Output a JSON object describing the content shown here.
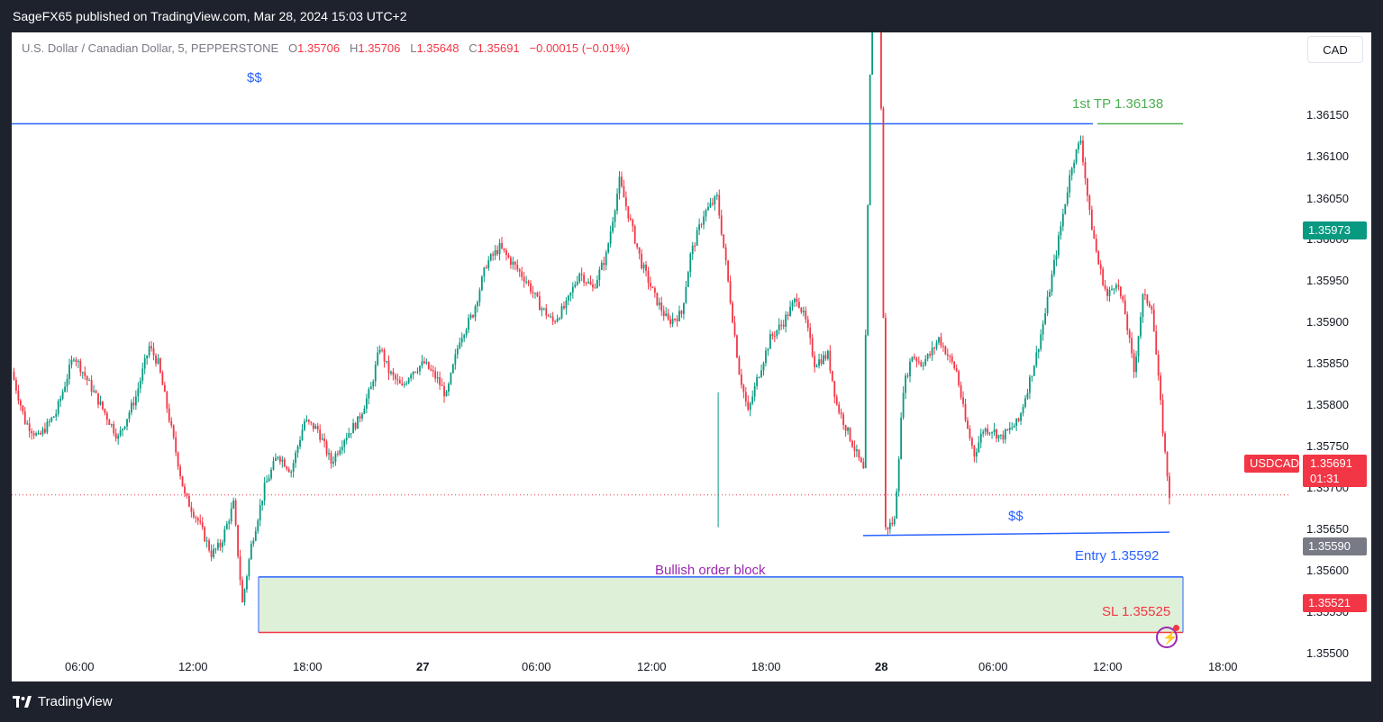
{
  "header": {
    "publish_line": "SageFX65 published on TradingView.com, Mar 28, 2024 15:03 UTC+2"
  },
  "legend": {
    "symbol": "U.S. Dollar / Canadian Dollar, 5, PEPPERSTONE",
    "o_label": "O",
    "o_value": "1.35706",
    "h_label": "H",
    "h_value": "1.35706",
    "l_label": "L",
    "l_value": "1.35648",
    "c_label": "C",
    "c_value": "1.35691",
    "change": "−0.00015 (−0.01%)"
  },
  "currency_button": "CAD",
  "price_axis": {
    "labels": [
      "1.36150",
      "1.36100",
      "1.36050",
      "1.36000",
      "1.35950",
      "1.35900",
      "1.35850",
      "1.35800",
      "1.35750",
      "1.35700",
      "1.35650",
      "1.35600",
      "1.35550",
      "1.35500"
    ],
    "tag_current_high": "1.35973",
    "tag_symbol": "USDCAD",
    "tag_last": "1.35691",
    "tag_countdown": "01:31",
    "tag_entry": "1.35590",
    "tag_sl": "1.35521"
  },
  "time_axis": {
    "labels": [
      "06:00",
      "12:00",
      "18:00",
      "27",
      "06:00",
      "12:00",
      "18:00",
      "28",
      "06:00",
      "12:00",
      "18:00"
    ]
  },
  "annotations": {
    "liquidity_top": "$$",
    "liquidity_bottom": "$$",
    "tp_label": "1st TP 1.36138",
    "entry_label": "Entry  1.35592",
    "sl_label": "SL 1.35525",
    "order_block_label": "Bullish order block"
  },
  "footer": {
    "brand": "TradingView"
  },
  "colors": {
    "up": "#089981",
    "down": "#f23645",
    "line_blue": "#2962ff",
    "tp_green": "#4caf50",
    "order_block_fill": "#dff0d8",
    "ob_text": "#9c27b0"
  },
  "chart_data": {
    "type": "candlestick",
    "title": "U.S. Dollar / Canadian Dollar, 5, PEPPERSTONE",
    "ylim": [
      1.35475,
      1.36185
    ],
    "y_ticks": [
      1.3615,
      1.361,
      1.3605,
      1.36,
      1.3595,
      1.359,
      1.3585,
      1.358,
      1.3575,
      1.357,
      1.3565,
      1.356,
      1.3555,
      1.355
    ],
    "x_ticks": [
      "06:00",
      "12:00",
      "18:00",
      "27",
      "06:00",
      "12:00",
      "18:00",
      "28",
      "06:00",
      "12:00",
      "18:00"
    ],
    "close_path": [
      [
        0,
        1.3584
      ],
      [
        6,
        1.3578
      ],
      [
        12,
        1.3576
      ],
      [
        20,
        1.3579
      ],
      [
        28,
        1.3586
      ],
      [
        34,
        1.3583
      ],
      [
        42,
        1.3579
      ],
      [
        48,
        1.3576
      ],
      [
        56,
        1.3581
      ],
      [
        62,
        1.3587
      ],
      [
        66,
        1.3585
      ],
      [
        72,
        1.3577
      ],
      [
        78,
        1.3569
      ],
      [
        84,
        1.3566
      ],
      [
        90,
        1.3562
      ],
      [
        94,
        1.3563
      ],
      [
        100,
        1.3568
      ],
      [
        104,
        1.3556
      ],
      [
        108,
        1.3563
      ],
      [
        114,
        1.357
      ],
      [
        120,
        1.3574
      ],
      [
        126,
        1.3572
      ],
      [
        132,
        1.3578
      ],
      [
        138,
        1.3577
      ],
      [
        144,
        1.3573
      ],
      [
        150,
        1.3576
      ],
      [
        156,
        1.3578
      ],
      [
        162,
        1.3582
      ],
      [
        166,
        1.3587
      ],
      [
        170,
        1.3584
      ],
      [
        176,
        1.3582
      ],
      [
        180,
        1.3584
      ],
      [
        186,
        1.3585
      ],
      [
        192,
        1.3583
      ],
      [
        196,
        1.3581
      ],
      [
        202,
        1.3588
      ],
      [
        208,
        1.3591
      ],
      [
        214,
        1.3597
      ],
      [
        220,
        1.3599
      ],
      [
        226,
        1.3597
      ],
      [
        232,
        1.3595
      ],
      [
        238,
        1.3592
      ],
      [
        244,
        1.359
      ],
      [
        250,
        1.3592
      ],
      [
        256,
        1.3596
      ],
      [
        262,
        1.3594
      ],
      [
        268,
        1.3598
      ],
      [
        274,
        1.3607
      ],
      [
        278,
        1.3603
      ],
      [
        284,
        1.3597
      ],
      [
        290,
        1.3593
      ],
      [
        296,
        1.359
      ],
      [
        302,
        1.3591
      ],
      [
        306,
        1.3598
      ],
      [
        312,
        1.3603
      ],
      [
        318,
        1.3605
      ],
      [
        322,
        1.3597
      ],
      [
        328,
        1.3584
      ],
      [
        332,
        1.3579
      ],
      [
        336,
        1.3583
      ],
      [
        342,
        1.3588
      ],
      [
        348,
        1.359
      ],
      [
        354,
        1.3593
      ],
      [
        358,
        1.359
      ],
      [
        362,
        1.3585
      ],
      [
        368,
        1.3586
      ],
      [
        372,
        1.358
      ],
      [
        378,
        1.3576
      ],
      [
        384,
        1.3572
      ],
      [
        390,
        1.3667
      ],
      [
        394,
        1.3565
      ],
      [
        398,
        1.3566
      ],
      [
        402,
        1.3582
      ],
      [
        406,
        1.3586
      ],
      [
        410,
        1.3585
      ],
      [
        414,
        1.3586
      ],
      [
        418,
        1.3588
      ],
      [
        422,
        1.3586
      ],
      [
        426,
        1.3584
      ],
      [
        430,
        1.3578
      ],
      [
        434,
        1.3574
      ],
      [
        438,
        1.3577
      ],
      [
        442,
        1.3577
      ],
      [
        446,
        1.3576
      ],
      [
        450,
        1.3577
      ],
      [
        454,
        1.3578
      ],
      [
        458,
        1.3582
      ],
      [
        462,
        1.3586
      ],
      [
        466,
        1.3591
      ],
      [
        470,
        1.3597
      ],
      [
        474,
        1.3603
      ],
      [
        478,
        1.3609
      ],
      [
        482,
        1.3612
      ],
      [
        486,
        1.3603
      ],
      [
        490,
        1.3597
      ],
      [
        494,
        1.3593
      ],
      [
        498,
        1.3595
      ],
      [
        502,
        1.3591
      ],
      [
        506,
        1.3584
      ],
      [
        510,
        1.3593
      ],
      [
        514,
        1.3592
      ],
      [
        518,
        1.358
      ],
      [
        520,
        1.3574
      ],
      [
        522,
        1.35691
      ]
    ],
    "levels": {
      "liquidity_high": 1.36138,
      "liquidity_low": 1.35642,
      "entry": 1.35592,
      "stop_loss": 1.35525,
      "take_profit": 1.36138,
      "last": 1.35691,
      "prev_high_marker": 1.35973,
      "entry_marker": 1.3559,
      "sl_marker": 1.35521
    }
  }
}
